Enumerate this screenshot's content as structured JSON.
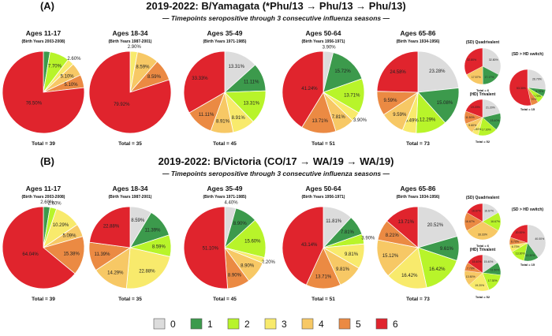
{
  "colors": {
    "0": "#dcdcdc",
    "1": "#3c9a4c",
    "2": "#b8f42a",
    "3": "#f8ea6c",
    "4": "#f7c865",
    "5": "#eb8a43",
    "6": "#e0242d"
  },
  "legend": {
    "items": [
      {
        "label": "0",
        "key": "0"
      },
      {
        "label": "1",
        "key": "1"
      },
      {
        "label": "2",
        "key": "2"
      },
      {
        "label": "3",
        "key": "3"
      },
      {
        "label": "4",
        "key": "4"
      },
      {
        "label": "5",
        "key": "5"
      },
      {
        "label": "6",
        "key": "6"
      }
    ]
  },
  "chart_data": [
    {
      "type": "pie",
      "panel": "(A)",
      "title": "2019-2022: B/Yamagata (*Phu/13 → Phu/13 → Phu/13)",
      "subtitle": "— Timepoints seropositive through 3 consecutive influenza seasons —",
      "charts": [
        {
          "title": "Ages 11-17",
          "subtitle": "(Birth Years 2003-2008)",
          "total": "Total = 39",
          "slices": [
            {
              "cat": "0",
              "value": 0
            },
            {
              "cat": "1",
              "value": 2.6
            },
            {
              "cat": "2",
              "value": 7.7
            },
            {
              "cat": "3",
              "value": 2.6
            },
            {
              "cat": "4",
              "value": 5.1
            },
            {
              "cat": "5",
              "value": 5.1
            },
            {
              "cat": "6",
              "value": 76.5
            }
          ],
          "labels": [
            "",
            "",
            "7.70%",
            "2.60%",
            "5.10%",
            "5.10%",
            "76.50%"
          ]
        },
        {
          "title": "Ages 18-34",
          "subtitle": "(Birth Years 1987-2001)",
          "total": "Total = 35",
          "slices": [
            {
              "cat": "0",
              "value": 0
            },
            {
              "cat": "1",
              "value": 0
            },
            {
              "cat": "2",
              "value": 0
            },
            {
              "cat": "3",
              "value": 2.9
            },
            {
              "cat": "4",
              "value": 8.59
            },
            {
              "cat": "5",
              "value": 8.59
            },
            {
              "cat": "6",
              "value": 79.92
            }
          ],
          "labels": [
            "",
            "",
            "",
            "2.90%",
            "8.59%",
            "8.59%",
            "79.92%"
          ]
        },
        {
          "title": "Ages 35-49",
          "subtitle": "(Birth Years 1971-1985)",
          "total": "Total = 45",
          "slices": [
            {
              "cat": "0",
              "value": 13.31
            },
            {
              "cat": "1",
              "value": 11.11
            },
            {
              "cat": "2",
              "value": 13.31
            },
            {
              "cat": "3",
              "value": 8.91
            },
            {
              "cat": "4",
              "value": 8.91
            },
            {
              "cat": "5",
              "value": 11.11
            },
            {
              "cat": "6",
              "value": 33.33
            }
          ],
          "labels": [
            "13.31%",
            "11.11%",
            "13.31%",
            "8.91%",
            "8.91%",
            "11.11%",
            "33.33%"
          ]
        },
        {
          "title": "Ages 50-64",
          "subtitle": "(Birth Years 1956-1971)",
          "total": "Total = 51",
          "slices": [
            {
              "cat": "0",
              "value": 3.9
            },
            {
              "cat": "1",
              "value": 15.72
            },
            {
              "cat": "2",
              "value": 13.71
            },
            {
              "cat": "3",
              "value": 3.9
            },
            {
              "cat": "4",
              "value": 7.81
            },
            {
              "cat": "5",
              "value": 13.71
            },
            {
              "cat": "6",
              "value": 41.24
            }
          ],
          "labels": [
            "3.90%",
            "15.72%",
            "13.71%",
            "3.90%",
            "7.81%",
            "13.71%",
            "41.24%"
          ]
        },
        {
          "title": "Ages 65-86",
          "subtitle": "(Birth Years 1934-1956)",
          "total": "Total = 73",
          "slices": [
            {
              "cat": "0",
              "value": 23.28
            },
            {
              "cat": "1",
              "value": 15.08
            },
            {
              "cat": "2",
              "value": 12.29
            },
            {
              "cat": "3",
              "value": 5.49
            },
            {
              "cat": "4",
              "value": 9.59
            },
            {
              "cat": "5",
              "value": 9.59
            },
            {
              "cat": "6",
              "value": 24.58
            }
          ],
          "labels": [
            "23.28%",
            "15.08%",
            "12.29%",
            "5.49%",
            "9.59%",
            "9.59%",
            "24.58%"
          ]
        },
        {
          "title": "(SD) Quadrivalent",
          "subtitle": "",
          "total": "Total = 6",
          "slices": [
            {
              "cat": "0",
              "value": 32.8
            },
            {
              "cat": "1",
              "value": 17.17
            },
            {
              "cat": "2",
              "value": 0
            },
            {
              "cat": "3",
              "value": 0
            },
            {
              "cat": "4",
              "value": 17.57
            },
            {
              "cat": "5",
              "value": 0
            },
            {
              "cat": "6",
              "value": 32.8
            }
          ],
          "labels": [
            "32.80%",
            "17.17%",
            "",
            "",
            "17.57%",
            "",
            "32.80%"
          ]
        },
        {
          "title": "(SD > HD switch)",
          "subtitle": "",
          "total": "Total = 15",
          "slices": [
            {
              "cat": "0",
              "value": 26.7
            },
            {
              "cat": "1",
              "value": 6.7
            },
            {
              "cat": "2",
              "value": 6.7
            },
            {
              "cat": "3",
              "value": 0
            },
            {
              "cat": "4",
              "value": 0
            },
            {
              "cat": "5",
              "value": 6.7
            },
            {
              "cat": "6",
              "value": 53.3
            }
          ],
          "labels": [
            "26.70%",
            "6.70%",
            "6.70%",
            "",
            "",
            "6.70%",
            "53.30%"
          ]
        },
        {
          "title": "(HD) Trivalent",
          "subtitle": "",
          "total": "Total = 52",
          "slices": [
            {
              "cat": "0",
              "value": 21.2
            },
            {
              "cat": "1",
              "value": 15.4
            },
            {
              "cat": "2",
              "value": 17.3
            },
            {
              "cat": "3",
              "value": 5.8
            },
            {
              "cat": "4",
              "value": 9.6
            },
            {
              "cat": "5",
              "value": 11.5
            },
            {
              "cat": "6",
              "value": 19.2
            }
          ],
          "labels": [
            "21.20%",
            "15.40%",
            "17.30%",
            "5.80%",
            "9.60%",
            "11.50%",
            "19.20%"
          ]
        }
      ]
    },
    {
      "type": "pie",
      "panel": "(B)",
      "title": "2019-2022: B/Victoria (CO/17 → WA/19 → WA/19)",
      "subtitle": "— Timepoints seropositive through 3 consecutive influenza seasons —",
      "charts": [
        {
          "title": "Ages 11-17",
          "subtitle": "(Birth Years 2003-2008)",
          "total": "Total = 39",
          "slices": [
            {
              "cat": "0",
              "value": 0
            },
            {
              "cat": "1",
              "value": 2.6
            },
            {
              "cat": "2",
              "value": 2.6
            },
            {
              "cat": "3",
              "value": 10.29
            },
            {
              "cat": "4",
              "value": 5.09
            },
            {
              "cat": "5",
              "value": 15.38
            },
            {
              "cat": "6",
              "value": 64.04
            }
          ],
          "labels": [
            "",
            "2.60%",
            "2.60%",
            "10.29%",
            "5.09%",
            "15.38%",
            "64.04%"
          ]
        },
        {
          "title": "Ages 18-34",
          "subtitle": "(Birth Years 1987-2001)",
          "total": "Total = 35",
          "slices": [
            {
              "cat": "0",
              "value": 8.59
            },
            {
              "cat": "1",
              "value": 11.39
            },
            {
              "cat": "2",
              "value": 8.59
            },
            {
              "cat": "3",
              "value": 22.88
            },
            {
              "cat": "4",
              "value": 14.29
            },
            {
              "cat": "5",
              "value": 11.39
            },
            {
              "cat": "6",
              "value": 22.88
            }
          ],
          "labels": [
            "8.59%",
            "11.39%",
            "8.59%",
            "22.88%",
            "14.29%",
            "11.39%",
            "22.88%"
          ]
        },
        {
          "title": "Ages 35-49",
          "subtitle": "(Birth Years 1971-1985)",
          "total": "Total = 45",
          "slices": [
            {
              "cat": "0",
              "value": 4.4
            },
            {
              "cat": "1",
              "value": 8.9
            },
            {
              "cat": "2",
              "value": 15.6
            },
            {
              "cat": "3",
              "value": 2.2
            },
            {
              "cat": "4",
              "value": 8.9
            },
            {
              "cat": "5",
              "value": 8.9
            },
            {
              "cat": "6",
              "value": 51.1
            }
          ],
          "labels": [
            "4.40%",
            "8.90%",
            "15.60%",
            "2.20%",
            "8.90%",
            "8.90%",
            "51.10%"
          ]
        },
        {
          "title": "Ages 50-64",
          "subtitle": "(Birth Years 1956-1971)",
          "total": "Total = 51",
          "slices": [
            {
              "cat": "0",
              "value": 11.81
            },
            {
              "cat": "1",
              "value": 7.81
            },
            {
              "cat": "2",
              "value": 3.9
            },
            {
              "cat": "3",
              "value": 9.81
            },
            {
              "cat": "4",
              "value": 9.81
            },
            {
              "cat": "5",
              "value": 13.71
            },
            {
              "cat": "6",
              "value": 43.14
            }
          ],
          "labels": [
            "11.81%",
            "7.81%",
            "3.90%",
            "9.81%",
            "9.81%",
            "13.71%",
            "43.14%"
          ]
        },
        {
          "title": "Ages 65-86",
          "subtitle": "(Birth Years 1934-1956)",
          "total": "Total = 73",
          "slices": [
            {
              "cat": "0",
              "value": 20.52
            },
            {
              "cat": "1",
              "value": 9.61
            },
            {
              "cat": "2",
              "value": 16.42
            },
            {
              "cat": "3",
              "value": 16.42
            },
            {
              "cat": "4",
              "value": 15.12
            },
            {
              "cat": "5",
              "value": 8.21
            },
            {
              "cat": "6",
              "value": 13.71
            }
          ],
          "labels": [
            "20.52%",
            "9.61%",
            "16.42%",
            "16.42%",
            "15.12%",
            "8.21%",
            "13.71%"
          ]
        },
        {
          "title": "(SD) Quadrivalent",
          "subtitle": "",
          "total": "Total = 6",
          "slices": [
            {
              "cat": "0",
              "value": 16.67
            },
            {
              "cat": "1",
              "value": 0
            },
            {
              "cat": "2",
              "value": 16.67
            },
            {
              "cat": "3",
              "value": 0
            },
            {
              "cat": "4",
              "value": 33.33
            },
            {
              "cat": "5",
              "value": 16.67
            },
            {
              "cat": "6",
              "value": 16.67
            }
          ],
          "labels": [
            "16.67%",
            "",
            "16.67%",
            "",
            "33.33%",
            "16.67%",
            "16.67%"
          ]
        },
        {
          "title": "(SD > HD switch)",
          "subtitle": "",
          "total": "Total = 15",
          "slices": [
            {
              "cat": "0",
              "value": 40.0
            },
            {
              "cat": "1",
              "value": 13.3
            },
            {
              "cat": "2",
              "value": 13.3
            },
            {
              "cat": "3",
              "value": 6.7
            },
            {
              "cat": "4",
              "value": 0
            },
            {
              "cat": "5",
              "value": 6.7
            },
            {
              "cat": "6",
              "value": 20.0
            }
          ],
          "labels": [
            "40.00%",
            "13.30%",
            "13.30%",
            "6.70%",
            "",
            "6.70%",
            "20.00%"
          ]
        },
        {
          "title": "(HD) Trivalent",
          "subtitle": "",
          "total": "Total = 52",
          "slices": [
            {
              "cat": "0",
              "value": 15.4
            },
            {
              "cat": "1",
              "value": 11.5
            },
            {
              "cat": "2",
              "value": 17.3
            },
            {
              "cat": "3",
              "value": 19.2
            },
            {
              "cat": "4",
              "value": 13.5
            },
            {
              "cat": "5",
              "value": 7.7
            },
            {
              "cat": "6",
              "value": 15.4
            }
          ],
          "labels": [
            "15.40%",
            "11.50%",
            "17.30%",
            "19.20%",
            "13.50%",
            "7.70%",
            "15.40%"
          ]
        }
      ]
    }
  ]
}
